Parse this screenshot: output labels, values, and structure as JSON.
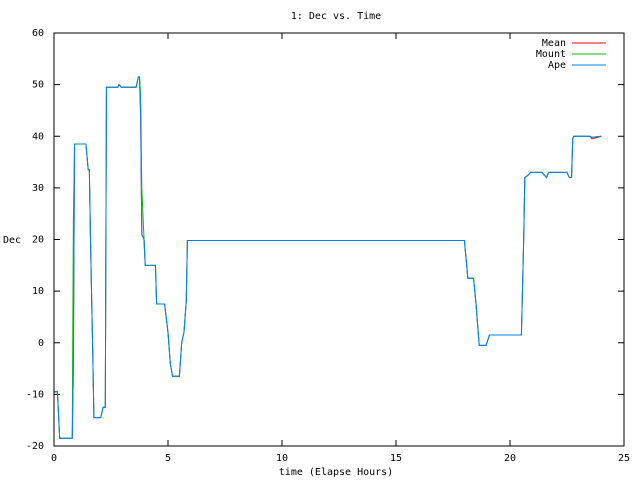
{
  "chart_data": {
    "type": "line",
    "title": "1: Dec vs. Time",
    "x_label": "time (Elapse Hours)",
    "y_label": "Dec",
    "x": [
      0,
      0.15,
      0.25,
      0.8,
      0.85,
      0.9,
      1.4,
      1.5,
      1.55,
      1.6,
      1.7,
      1.75,
      2.05,
      2.15,
      2.25,
      2.3,
      2.8,
      2.85,
      2.95,
      3.6,
      3.7,
      3.75,
      3.8,
      3.85,
      3.95,
      4.0,
      4.45,
      4.5,
      4.85,
      5.0,
      5.1,
      5.2,
      5.5,
      5.6,
      5.7,
      5.8,
      5.85,
      18.0,
      18.1,
      18.15,
      18.4,
      18.5,
      18.65,
      18.95,
      19.1,
      20.5,
      20.6,
      20.65,
      20.8,
      20.9,
      21.4,
      21.6,
      21.7,
      22.5,
      22.6,
      22.7,
      22.75,
      22.8,
      23.5,
      23.6,
      24
    ],
    "series": [
      {
        "name": "Mean",
        "color": "#ff0000",
        "values": [
          -9.5,
          -9.5,
          -18.5,
          -18.5,
          -5,
          38.5,
          38.5,
          33.5,
          33.5,
          20,
          -2,
          -14.5,
          -14.5,
          -12.5,
          -12.5,
          49.5,
          49.5,
          50,
          49.5,
          49.5,
          51.5,
          51.5,
          44,
          21,
          20,
          15,
          15,
          7.5,
          7.5,
          2,
          -4,
          -6.5,
          -6.5,
          0,
          2,
          8,
          19.8,
          19.8,
          15,
          12.5,
          12.5,
          8,
          -0.5,
          -0.5,
          1.5,
          1.5,
          20,
          32,
          32.5,
          33,
          33,
          32,
          33,
          33,
          32,
          32,
          39.5,
          40,
          40,
          39.5,
          40
        ]
      },
      {
        "name": "Mount",
        "color": "#00c000",
        "values": [
          -9.5,
          -9.5,
          -18.5,
          -18.5,
          24,
          38.5,
          38.5,
          33.5,
          33.5,
          20,
          -2,
          -14.5,
          -14.5,
          -12.5,
          -12.5,
          49.5,
          49.5,
          50,
          49.5,
          49.5,
          51.5,
          51.5,
          48,
          30,
          20,
          15,
          15,
          7.5,
          7.5,
          2,
          -4,
          -6.5,
          -6.5,
          0,
          2,
          8,
          19.8,
          19.8,
          15,
          12.5,
          12.5,
          8,
          -0.5,
          -0.5,
          1.5,
          1.5,
          20,
          32,
          32.5,
          33,
          33,
          32,
          33,
          33,
          32,
          32,
          39.5,
          40,
          40,
          39.8,
          40
        ]
      },
      {
        "name": "Ape",
        "color": "#0080ff",
        "values": [
          -9.5,
          -9.5,
          -18.5,
          -18.5,
          -5,
          38.5,
          38.5,
          33.5,
          33.5,
          20,
          -2,
          -14.5,
          -14.5,
          -12.5,
          -12.5,
          49.5,
          49.5,
          50,
          49.5,
          49.5,
          51.5,
          51.5,
          44,
          21,
          20,
          15,
          15,
          7.5,
          7.5,
          2,
          -4,
          -6.5,
          -6.5,
          0,
          2,
          8,
          19.8,
          19.8,
          15,
          12.5,
          12.5,
          8,
          -0.5,
          -0.5,
          1.5,
          1.5,
          20,
          32,
          32.5,
          33,
          33,
          32,
          33,
          33,
          32,
          32,
          39.5,
          40,
          40,
          39.8,
          40
        ]
      }
    ],
    "xlim": [
      0,
      25
    ],
    "xticks": [
      0,
      5,
      10,
      15,
      20,
      25
    ],
    "ylim": [
      -20,
      60
    ],
    "yticks": [
      -20,
      -10,
      0,
      10,
      20,
      30,
      40,
      50,
      60
    ]
  }
}
